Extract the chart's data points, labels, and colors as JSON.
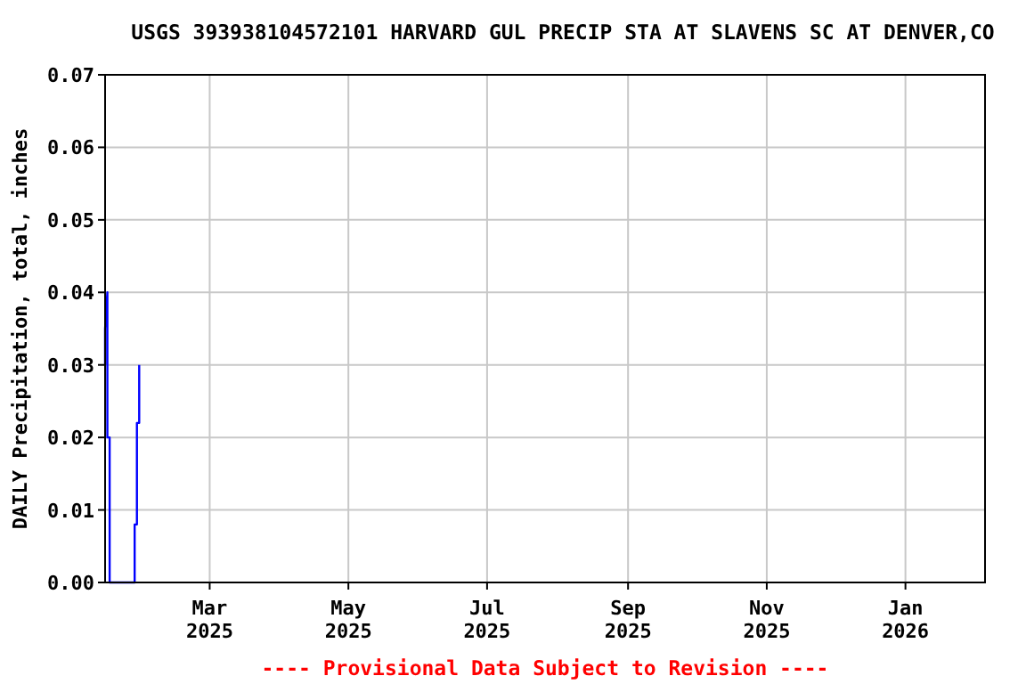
{
  "chart_data": {
    "type": "line",
    "title": "USGS 393938104572101  HARVARD GUL PRECIP STA AT SLAVENS SC AT DENVER,CO",
    "ylabel": "DAILY Precipitation, total, inches",
    "x": [
      "2025-01-14",
      "2025-01-14",
      "2025-01-15",
      "2025-01-15",
      "2025-01-16",
      "2025-01-16",
      "2025-01-27",
      "2025-01-27",
      "2025-01-28",
      "2025-01-28",
      "2025-01-29",
      "2025-01-29"
    ],
    "series": [
      {
        "color": "#0000ff",
        "values": [
          0.03,
          0.035,
          0.04,
          0.02,
          0.02,
          0.0,
          0.0,
          0.008,
          0.008,
          0.022,
          0.022,
          0.03
        ]
      }
    ],
    "xlim": [
      "2025-01-14",
      "2026-02-05"
    ],
    "xticks": [
      {
        "value": "2025-03-01",
        "label": "Mar\n2025"
      },
      {
        "value": "2025-05-01",
        "label": "May\n2025"
      },
      {
        "value": "2025-07-01",
        "label": "Jul\n2025"
      },
      {
        "value": "2025-09-01",
        "label": "Sep\n2025"
      },
      {
        "value": "2025-11-01",
        "label": "Nov\n2025"
      },
      {
        "value": "2026-01-01",
        "label": "Jan\n2026"
      }
    ],
    "ylim": [
      0,
      0.07
    ],
    "yticks": [
      {
        "value": 0,
        "label": "0.00"
      },
      {
        "value": 0.01,
        "label": "0.01"
      },
      {
        "value": 0.02,
        "label": "0.02"
      },
      {
        "value": 0.03,
        "label": "0.03"
      },
      {
        "value": 0.04,
        "label": "0.04"
      },
      {
        "value": 0.05,
        "label": "0.05"
      },
      {
        "value": 0.06,
        "label": "0.06"
      },
      {
        "value": 0.07,
        "label": "0.07"
      }
    ],
    "grid": true,
    "marker": "none",
    "line_style": "solid",
    "annotations": [
      "---- Provisional Data Subject to Revision ----"
    ]
  }
}
